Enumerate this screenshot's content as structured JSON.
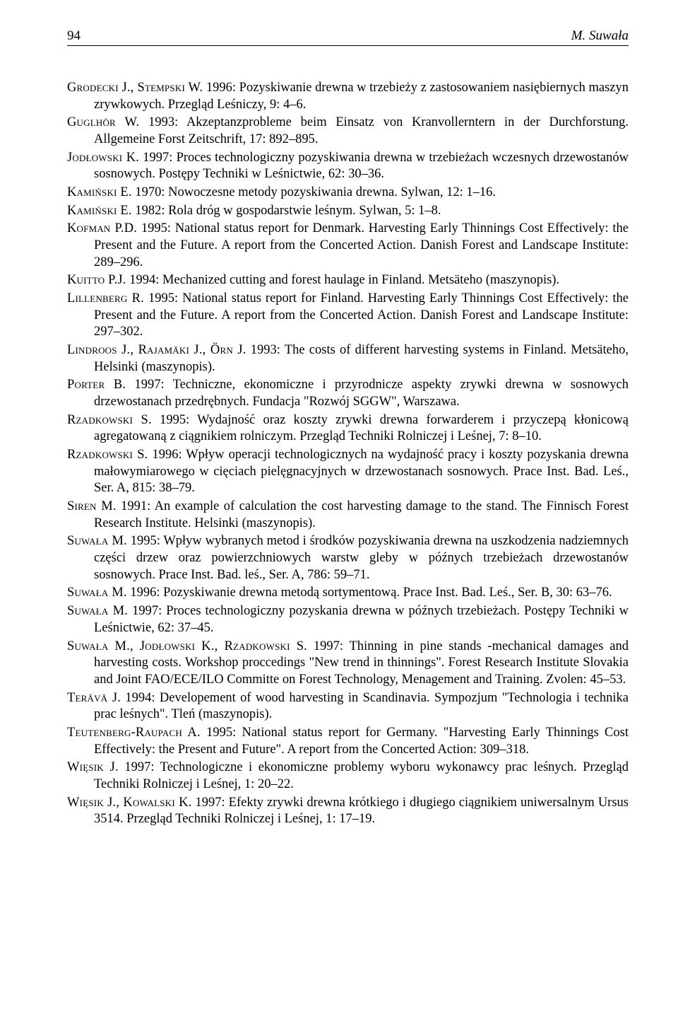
{
  "header": {
    "page_number": "94",
    "running_author": "M. Suwała"
  },
  "references": [
    {
      "authors": "Grodecki J., Stempski W.",
      "text": " 1996: Pozyskiwanie drewna w trzebieży z zastosowaniem nasiębiernych maszyn zrywkowych. Przegląd Leśniczy, 9: 4–6."
    },
    {
      "authors": "Guglhör W.",
      "text": " 1993: Akzeptanzprobleme beim Einsatz von Kranvollerntern in der Durchforstung. Allgemeine Forst Zeitschrift, 17: 892–895."
    },
    {
      "authors": "Jodłowski K.",
      "text": " 1997: Proces technologiczny pozyskiwania drewna w trzebieżach wczesnych drzewostanów sosnowych. Postępy Techniki w Leśnictwie, 62: 30–36."
    },
    {
      "authors": "Kamiński E.",
      "text": " 1970: Nowoczesne metody pozyskiwania drewna. Sylwan, 12: 1–16."
    },
    {
      "authors": "Kamiński E.",
      "text": " 1982: Rola dróg w gospodarstwie leśnym. Sylwan, 5: 1–8."
    },
    {
      "authors": "Kofman P.D.",
      "text": " 1995: National status report for Denmark. Harvesting Early Thinnings Cost Effectively: the Present and the Future. A report from the Concerted Action. Danish Forest and Landscape Institute: 289–296."
    },
    {
      "authors": "Kuitto P.J.",
      "text": " 1994: Mechanized cutting and forest haulage in Finland. Metsäteho (maszynopis)."
    },
    {
      "authors": "Lillenberg R.",
      "text": " 1995: National status report for Finland. Harvesting Early Thinnings Cost Effectively: the Present and the Future. A report from the Concerted Action. Danish Forest and Landscape Institute: 297–302."
    },
    {
      "authors": "Lindroos J., Rajamäki J., Örn J.",
      "text": " 1993: The costs of different harvesting systems in Finland. Metsäteho, Helsinki (maszynopis)."
    },
    {
      "authors": "Porter B.",
      "text": " 1997: Techniczne, ekonomiczne i przyrodnicze aspekty zrywki drewna w sosnowych drzewostanach przedrębnych. Fundacja \"Rozwój SGGW\", Warszawa."
    },
    {
      "authors": "Rzadkowski S.",
      "text": " 1995: Wydajność oraz koszty zrywki drewna forwarderem i przyczepą kłonicową agregatowaną z ciągnikiem rolniczym. Przegląd Techniki Rolniczej i Leśnej, 7: 8–10."
    },
    {
      "authors": "Rzadkowski S.",
      "text": " 1996: Wpływ operacji technologicznych na wydajność pracy i koszty pozyskania drewna małowymiarowego w cięciach pielęgnacyjnych w drzewostanach sosnowych. Prace Inst. Bad. Leś., Ser. A, 815: 38–79."
    },
    {
      "authors": "Siren M.",
      "text": " 1991: An example of calculation the cost harvesting damage to the stand. The Finnisch Forest Research Institute. Helsinki (maszynopis)."
    },
    {
      "authors": "Suwała M.",
      "text": " 1995: Wpływ wybranych metod i środków pozyskiwania drewna na uszkodzenia nadziemnych części drzew oraz powierzchniowych warstw gleby w późnych trzebieżach drzewostanów sosnowych. Prace Inst. Bad. leś., Ser. A, 786: 59–71."
    },
    {
      "authors": "Suwała M.",
      "text": " 1996: Pozyskiwanie drewna metodą sortymentową. Prace Inst. Bad. Leś., Ser. B, 30: 63–76."
    },
    {
      "authors": "Suwała M.",
      "text": " 1997: Proces technologiczny pozyskania drewna w późnych trzebieżach. Postępy Techniki w Leśnictwie, 62: 37–45."
    },
    {
      "authors": "Suwała M., Jodłowski K., Rzadkowski S.",
      "text": " 1997: Thinning in pine stands -mechanical damages and harvesting costs. Workshop proccedings \"New trend in thinnings\". Forest Research Institute Slovakia and Joint FAO/ECE/ILO Committe on Forest Technology, Menagement and Training. Zvolen: 45–53."
    },
    {
      "authors": "Terävä J.",
      "text": " 1994: Developement of wood harvesting in Scandinavia. Sympozjum \"Technologia i technika prac leśnych\". Tleń (maszynopis)."
    },
    {
      "authors": "Teutenberg-Raupach A.",
      "text": " 1995: National status report for Germany. \"Harvesting Early Thinnings Cost Effectively: the Present and Future\". A report from the Concerted Action: 309–318."
    },
    {
      "authors": "Więsik J.",
      "text": " 1997: Technologiczne i ekonomiczne problemy wyboru wykonawcy prac leśnych. Przegląd Techniki Rolniczej i Leśnej, 1: 20–22."
    },
    {
      "authors": "Więsik J., Kowalski K.",
      "text": " 1997: Efekty zrywki drewna krótkiego i długiego ciągnikiem uniwersalnym Ursus 3514. Przegląd Techniki Rolniczej i Leśnej, 1: 17–19."
    }
  ]
}
